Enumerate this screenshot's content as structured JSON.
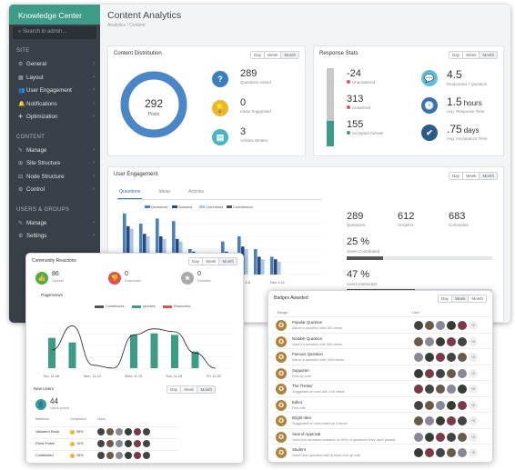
{
  "sidebar": {
    "brand": "Knowledge Center",
    "search_placeholder": "Search in admin...",
    "sections": [
      {
        "title": "SITE",
        "items": [
          "General",
          "Layout",
          "User Engagement",
          "Notifications",
          "Optimization"
        ]
      },
      {
        "title": "CONTENT",
        "items": [
          "Manage",
          "Site Structure",
          "Node Structure",
          "Control"
        ]
      },
      {
        "title": "USERS & GROUPS",
        "items": [
          "Manage",
          "Settings"
        ]
      }
    ]
  },
  "header": {
    "title": "Content Analytics",
    "breadcrumb": "Analytics / Content"
  },
  "ranges": [
    "Day",
    "Week",
    "Month"
  ],
  "distribution": {
    "title": "Content Distribution",
    "donut_value": "292",
    "donut_label": "Posts",
    "stats": [
      {
        "value": "289",
        "label": "Questions Asked",
        "icon": "question-icon",
        "color": "#3a80c0"
      },
      {
        "value": "0",
        "label": "Ideas Suggested",
        "icon": "lightbulb-icon",
        "color": "#f0b429"
      },
      {
        "value": "3",
        "label": "Articles Written",
        "icon": "document-icon",
        "color": "#4ab5c4"
      }
    ]
  },
  "response": {
    "title": "Response Stats",
    "left": [
      {
        "value": "-24",
        "label": "Unanswered",
        "color": "#d9534f"
      },
      {
        "value": "313",
        "label": "Answered",
        "color": "#d9534f"
      },
      {
        "value": "155",
        "label": "Accepted Answer",
        "color": "#3d9c86"
      }
    ],
    "right": [
      {
        "value": "4.5",
        "unit": "",
        "label": "Responses / Question",
        "icon": "chat-icon",
        "color": "#5bc0de"
      },
      {
        "value": "1.5",
        "unit": "hours",
        "label": "Avg. Response Time",
        "icon": "clock-icon",
        "color": "#3a70b0"
      },
      {
        "value": ".75",
        "unit": "days",
        "label": "Avg. Acceptance Time",
        "icon": "check-icon",
        "color": "#2a5a8a"
      }
    ]
  },
  "engagement": {
    "title": "User Engagement",
    "tabs": [
      "Questions",
      "Ideas",
      "Articles"
    ],
    "chart_data": {
      "type": "bar",
      "categories": [
        "",
        "",
        "",
        "",
        "",
        "",
        "",
        "Dec 2-8",
        "",
        "Dec 9-11"
      ],
      "series": [
        {
          "name": "Questions",
          "color": "#4a7fc0",
          "values": [
            48,
            40,
            44,
            42,
            20,
            14,
            26,
            30,
            20,
            14
          ]
        },
        {
          "name": "Answers",
          "color": "#2a4a7a",
          "values": [
            38,
            32,
            30,
            28,
            18,
            10,
            18,
            22,
            14,
            12
          ]
        },
        {
          "name": "Comments",
          "color": "#a9c8e8",
          "values": [
            36,
            30,
            28,
            26,
            16,
            10,
            16,
            20,
            12,
            10
          ]
        },
        {
          "name": "Contributors",
          "color": "#555",
          "values": [
            0,
            0,
            0,
            0,
            0,
            0,
            0,
            0,
            0,
            0
          ]
        }
      ],
      "ylim": [
        0,
        50
      ]
    },
    "stats": [
      {
        "value": "289",
        "label": "Questions"
      },
      {
        "value": "612",
        "label": "Answers"
      },
      {
        "value": "683",
        "label": "Comments"
      }
    ],
    "pct1": {
      "value": "25 %",
      "label": "Users Contributed",
      "fill": 0.25
    },
    "pct2": {
      "value": "47 %",
      "label": "Users Interacted",
      "fill": 0.47
    }
  },
  "reactions": {
    "title": "Community Reactions",
    "items": [
      {
        "value": "86",
        "label": "Upvotes",
        "color": "#4cae4c",
        "icon": "thumbs-up-icon"
      },
      {
        "value": "0",
        "label": "Downvotes",
        "color": "#d9534f",
        "icon": "thumbs-down-icon"
      },
      {
        "value": "0",
        "label": "Favorites",
        "color": "#aaa",
        "icon": "star-icon"
      }
    ],
    "pageviews_title": "PageViews",
    "chart_data": {
      "type": "bar",
      "legend": [
        "Contributors",
        "Upvotes",
        "Downvotes"
      ],
      "categories": [
        "Thu, 11-08",
        "Mon, 11-12",
        "Wed, 11-19",
        "Sun, 11-25",
        "Fri, 11-30"
      ],
      "bars": [
        20,
        17,
        0,
        0,
        22,
        23,
        22,
        11,
        0
      ],
      "line": [
        12,
        28,
        2,
        0,
        22,
        26,
        24,
        10,
        0
      ],
      "ylim": [
        0,
        30
      ]
    },
    "new_users_title": "New Users",
    "new_users_value": "44",
    "new_users_label": "Users joined",
    "table": {
      "headers": [
        "Milestone",
        "Completion",
        "Users"
      ],
      "rows": [
        {
          "name": "Validated Email",
          "pct": "95%"
        },
        {
          "name": "Filled Profile",
          "pct": "10%"
        },
        {
          "name": "Contributed",
          "pct": "15%"
        }
      ]
    }
  },
  "badges": {
    "title": "Badges Awarded",
    "col_badge": "Badge",
    "col_user": "User",
    "items": [
      {
        "name": "Popular Question",
        "desc": "Asked a question with 300 views"
      },
      {
        "name": "Notable Question",
        "desc": "Asked a question with 500 views"
      },
      {
        "name": "Famous Question",
        "desc": "Asked a question with 1000 views"
      },
      {
        "name": "Supporter",
        "desc": "First up vote"
      },
      {
        "name": "The Thinker",
        "desc": "Suggested an idea with 100 views"
      },
      {
        "name": "Editor",
        "desc": "First edit"
      },
      {
        "name": "Bright Idea",
        "desc": "Suggested an idea voted up 5 times"
      },
      {
        "name": "Seal of Approval",
        "desc": "Gave five accepted answers on 50% of questions they have posted"
      },
      {
        "name": "Student",
        "desc": "Asked first question with at least one up vote"
      }
    ],
    "more": "+5"
  }
}
